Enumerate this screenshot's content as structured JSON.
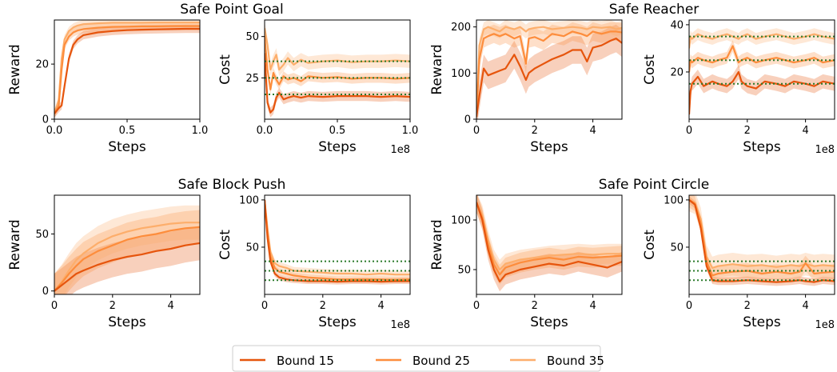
{
  "colors": {
    "bound15": "#e6550d",
    "bound25": "#fd8d3c",
    "bound35": "#fdae6b",
    "threshold": "#2a7a2a"
  },
  "legend": {
    "entries": [
      "Bound 15",
      "Bound 25",
      "Bound 35"
    ]
  },
  "chart_data": [
    {
      "type": "line",
      "panel": "goal-reward",
      "title": "Safe Point Goal",
      "xlabel": "Steps",
      "ylabel": "Reward",
      "x_offset_text": "",
      "xlim": [
        0,
        1.0
      ],
      "ylim": [
        0,
        36
      ],
      "x_ticks": [
        0.0,
        0.5,
        1.0
      ],
      "x_tick_labels": [
        "0.0",
        "0.5",
        "1.0"
      ],
      "y_ticks": [
        0,
        20
      ],
      "y_tick_labels": [
        "0",
        "20"
      ],
      "x": [
        0.0,
        0.03,
        0.05,
        0.07,
        0.1,
        0.13,
        0.16,
        0.2,
        0.3,
        0.4,
        0.5,
        0.6,
        0.7,
        0.8,
        0.9,
        1.0
      ],
      "series": [
        {
          "name": "Bound 15",
          "values": [
            2,
            4,
            5,
            12,
            22,
            27,
            29,
            30.5,
            31.5,
            32,
            32.3,
            32.5,
            32.6,
            32.7,
            32.8,
            32.8
          ],
          "band": 1.5
        },
        {
          "name": "Bound 25",
          "values": [
            2,
            5,
            18,
            27,
            30,
            31.5,
            32.2,
            32.7,
            33.2,
            33.5,
            33.6,
            33.7,
            33.7,
            33.8,
            33.8,
            33.8
          ],
          "band": 1.5
        },
        {
          "name": "Bound 35",
          "values": [
            2,
            7,
            22,
            29,
            32,
            33.3,
            34,
            34.5,
            34.8,
            35,
            35,
            35,
            35.1,
            35.1,
            35.1,
            35.1
          ],
          "band": 1.5
        }
      ],
      "thresholds": []
    },
    {
      "type": "line",
      "panel": "goal-cost",
      "title": "",
      "xlabel": "Steps",
      "ylabel": "Cost",
      "x_offset_text": "1e8",
      "xlim": [
        0,
        1.0
      ],
      "ylim": [
        0,
        60
      ],
      "x_ticks": [
        0.0,
        0.5,
        1.0
      ],
      "x_tick_labels": [
        "0.0",
        "0.5",
        "1.0"
      ],
      "y_ticks": [
        25,
        50
      ],
      "y_tick_labels": [
        "25",
        "50"
      ],
      "x": [
        0.0,
        0.02,
        0.04,
        0.06,
        0.08,
        0.1,
        0.13,
        0.16,
        0.2,
        0.25,
        0.3,
        0.4,
        0.5,
        0.6,
        0.7,
        0.8,
        0.9,
        1.0
      ],
      "series": [
        {
          "name": "Bound 15",
          "values": [
            40,
            10,
            4,
            6,
            13,
            16,
            12,
            13,
            14,
            13,
            14,
            13.5,
            14,
            14,
            14,
            13.5,
            14,
            13.5
          ],
          "band": 3
        },
        {
          "name": "Bound 25",
          "values": [
            50,
            30,
            18,
            28,
            24,
            21,
            26,
            24,
            25,
            23,
            26,
            25,
            25.5,
            24.5,
            25,
            25,
            24.5,
            25
          ],
          "band": 3
        },
        {
          "name": "Bound 35",
          "values": [
            55,
            45,
            30,
            35,
            39,
            30,
            33,
            37,
            33,
            36,
            34,
            35,
            35.5,
            34.5,
            35,
            35,
            35.5,
            35
          ],
          "band": 4
        }
      ],
      "thresholds": [
        15,
        25,
        35
      ]
    },
    {
      "type": "line",
      "panel": "reacher-reward",
      "title": "Safe Reacher",
      "xlabel": "Steps",
      "ylabel": "Reward",
      "x_offset_text": "",
      "xlim": [
        0,
        5
      ],
      "ylim": [
        0,
        215
      ],
      "x_ticks": [
        0,
        2,
        4
      ],
      "x_tick_labels": [
        "0",
        "2",
        "4"
      ],
      "y_ticks": [
        0,
        100,
        200
      ],
      "y_tick_labels": [
        "0",
        "100",
        "200"
      ],
      "x": [
        0.0,
        0.1,
        0.25,
        0.4,
        0.6,
        0.8,
        1.0,
        1.3,
        1.5,
        1.7,
        1.8,
        2.0,
        2.3,
        2.6,
        3.0,
        3.3,
        3.6,
        3.8,
        4.0,
        4.3,
        4.6,
        4.8,
        5.0
      ],
      "series": [
        {
          "name": "Bound 15",
          "values": [
            5,
            50,
            110,
            95,
            100,
            105,
            110,
            140,
            115,
            85,
            100,
            110,
            120,
            130,
            140,
            150,
            150,
            125,
            155,
            160,
            170,
            175,
            165
          ],
          "band": 30
        },
        {
          "name": "Bound 25",
          "values": [
            5,
            130,
            175,
            180,
            185,
            180,
            185,
            175,
            180,
            120,
            175,
            178,
            170,
            185,
            180,
            190,
            185,
            180,
            190,
            185,
            190,
            190,
            188
          ],
          "band": 20
        },
        {
          "name": "Bound 35",
          "values": [
            5,
            160,
            195,
            200,
            195,
            190,
            200,
            195,
            200,
            190,
            195,
            198,
            200,
            195,
            198,
            200,
            198,
            195,
            200,
            198,
            200,
            195,
            198
          ],
          "band": 15
        }
      ],
      "thresholds": []
    },
    {
      "type": "line",
      "panel": "reacher-cost",
      "title": "",
      "xlabel": "Steps",
      "ylabel": "Cost",
      "x_offset_text": "1e8",
      "xlim": [
        0,
        5
      ],
      "ylim": [
        0,
        42
      ],
      "x_ticks": [
        0,
        2,
        4
      ],
      "x_tick_labels": [
        "0",
        "2",
        "4"
      ],
      "y_ticks": [
        20,
        40
      ],
      "y_tick_labels": [
        "20",
        "40"
      ],
      "x": [
        0.0,
        0.05,
        0.1,
        0.3,
        0.5,
        0.8,
        1.0,
        1.3,
        1.5,
        1.7,
        1.8,
        2.0,
        2.3,
        2.6,
        3.0,
        3.3,
        3.6,
        4.0,
        4.3,
        4.6,
        5.0
      ],
      "series": [
        {
          "name": "Bound 15",
          "values": [
            2,
            12,
            15,
            18,
            14,
            16,
            15,
            14,
            16,
            20,
            16,
            14,
            13,
            16,
            15,
            14,
            16,
            15,
            14,
            16,
            15
          ],
          "band": 3
        },
        {
          "name": "Bound 25",
          "values": [
            20,
            25,
            24,
            26,
            25,
            24,
            25,
            26,
            31,
            24,
            25,
            26,
            24,
            25,
            26,
            25,
            24,
            25,
            26,
            24,
            25
          ],
          "band": 2.5
        },
        {
          "name": "Bound 35",
          "values": [
            30,
            35,
            34,
            36,
            35,
            34,
            35,
            36,
            35,
            34,
            35,
            36,
            34,
            35,
            36,
            35,
            34,
            35,
            36,
            35,
            34
          ],
          "band": 2.5
        }
      ],
      "thresholds": [
        15,
        25,
        35
      ]
    },
    {
      "type": "line",
      "panel": "push-reward",
      "title": "Safe Block Push",
      "xlabel": "Steps",
      "ylabel": "Reward",
      "x_offset_text": "",
      "xlim": [
        0,
        5
      ],
      "ylim": [
        -3,
        84
      ],
      "x_ticks": [
        0,
        2,
        4
      ],
      "x_tick_labels": [
        "0",
        "2",
        "4"
      ],
      "y_ticks": [
        0,
        50
      ],
      "y_tick_labels": [
        "0",
        "50"
      ],
      "x": [
        0.0,
        0.25,
        0.5,
        0.75,
        1.0,
        1.5,
        2.0,
        2.5,
        3.0,
        3.5,
        4.0,
        4.5,
        5.0
      ],
      "series": [
        {
          "name": "Bound 15",
          "values": [
            0,
            5,
            10,
            15,
            18,
            23,
            27,
            30,
            32,
            35,
            37,
            40,
            42
          ],
          "band": 15
        },
        {
          "name": "Bound 25",
          "values": [
            0,
            7,
            15,
            22,
            28,
            35,
            40,
            45,
            48,
            50,
            53,
            55,
            56
          ],
          "band": 15
        },
        {
          "name": "Bound 35",
          "values": [
            0,
            8,
            18,
            27,
            33,
            42,
            48,
            52,
            55,
            57,
            59,
            60,
            60
          ],
          "band": 15
        }
      ],
      "thresholds": []
    },
    {
      "type": "line",
      "panel": "push-cost",
      "title": "",
      "xlabel": "Steps",
      "ylabel": "Cost",
      "x_offset_text": "1e8",
      "xlim": [
        0,
        5
      ],
      "ylim": [
        0,
        105
      ],
      "x_ticks": [
        0,
        2,
        4
      ],
      "x_tick_labels": [
        "0",
        "2",
        "4"
      ],
      "y_ticks": [
        50,
        100
      ],
      "y_tick_labels": [
        "50",
        "100"
      ],
      "x": [
        0.0,
        0.1,
        0.2,
        0.35,
        0.5,
        0.75,
        1.0,
        1.5,
        2.0,
        2.5,
        3.0,
        3.5,
        4.0,
        4.5,
        5.0
      ],
      "series": [
        {
          "name": "Bound 15",
          "values": [
            100,
            60,
            35,
            22,
            18,
            16,
            15,
            14,
            14,
            13.5,
            14,
            14,
            13.5,
            14,
            14
          ],
          "band": 3
        },
        {
          "name": "Bound 25",
          "values": [
            100,
            65,
            40,
            28,
            24,
            22,
            20,
            18,
            17,
            16,
            16,
            16,
            16,
            15.5,
            16
          ],
          "band": 3
        },
        {
          "name": "Bound 35",
          "values": [
            100,
            70,
            45,
            33,
            30,
            28,
            25,
            24,
            23,
            22,
            22,
            21,
            22,
            21,
            21
          ],
          "band": 4
        }
      ],
      "thresholds": [
        15,
        25,
        35
      ]
    },
    {
      "type": "line",
      "panel": "circle-reward",
      "title": "Safe Point Circle",
      "xlabel": "Steps",
      "ylabel": "Reward",
      "x_offset_text": "",
      "xlim": [
        0,
        5
      ],
      "ylim": [
        25,
        125
      ],
      "x_ticks": [
        0,
        2,
        4
      ],
      "x_tick_labels": [
        "0",
        "2",
        "4"
      ],
      "y_ticks": [
        50,
        100
      ],
      "y_tick_labels": [
        "50",
        "100"
      ],
      "x": [
        0.0,
        0.2,
        0.4,
        0.6,
        0.8,
        1.0,
        1.5,
        2.0,
        2.5,
        3.0,
        3.5,
        4.0,
        4.5,
        5.0
      ],
      "series": [
        {
          "name": "Bound 15",
          "values": [
            118,
            100,
            70,
            50,
            38,
            45,
            50,
            53,
            56,
            54,
            58,
            55,
            52,
            58
          ],
          "band": 10
        },
        {
          "name": "Bound 25",
          "values": [
            118,
            102,
            75,
            55,
            45,
            52,
            57,
            60,
            62,
            60,
            63,
            62,
            63,
            64
          ],
          "band": 10
        },
        {
          "name": "Bound 35",
          "values": [
            118,
            105,
            80,
            60,
            50,
            56,
            60,
            62,
            64,
            65,
            66,
            65,
            66,
            66
          ],
          "band": 10
        }
      ],
      "thresholds": []
    },
    {
      "type": "line",
      "panel": "circle-cost",
      "title": "",
      "xlabel": "Steps",
      "ylabel": "Cost",
      "x_offset_text": "1e8",
      "xlim": [
        0,
        5
      ],
      "ylim": [
        0,
        105
      ],
      "x_ticks": [
        0,
        2,
        4
      ],
      "x_tick_labels": [
        "0",
        "2",
        "4"
      ],
      "y_ticks": [
        50,
        100
      ],
      "y_tick_labels": [
        "50",
        "100"
      ],
      "x": [
        0.0,
        0.2,
        0.4,
        0.6,
        0.8,
        1.0,
        1.5,
        2.0,
        2.5,
        3.0,
        3.5,
        3.8,
        4.0,
        4.3,
        4.6,
        5.0
      ],
      "series": [
        {
          "name": "Bound 15",
          "values": [
            100,
            95,
            70,
            30,
            15,
            14,
            14,
            15,
            14,
            13,
            14,
            15,
            14,
            13,
            15,
            14
          ],
          "band": 4
        },
        {
          "name": "Bound 25",
          "values": [
            100,
            96,
            75,
            35,
            20,
            22,
            24,
            25,
            22,
            24,
            22,
            24,
            33,
            22,
            23,
            24
          ],
          "band": 8
        },
        {
          "name": "Bound 35",
          "values": [
            100,
            97,
            80,
            40,
            28,
            30,
            32,
            30,
            31,
            29,
            31,
            30,
            32,
            30,
            31,
            30
          ],
          "band": 12
        }
      ],
      "thresholds": [
        15,
        25,
        35
      ]
    }
  ]
}
